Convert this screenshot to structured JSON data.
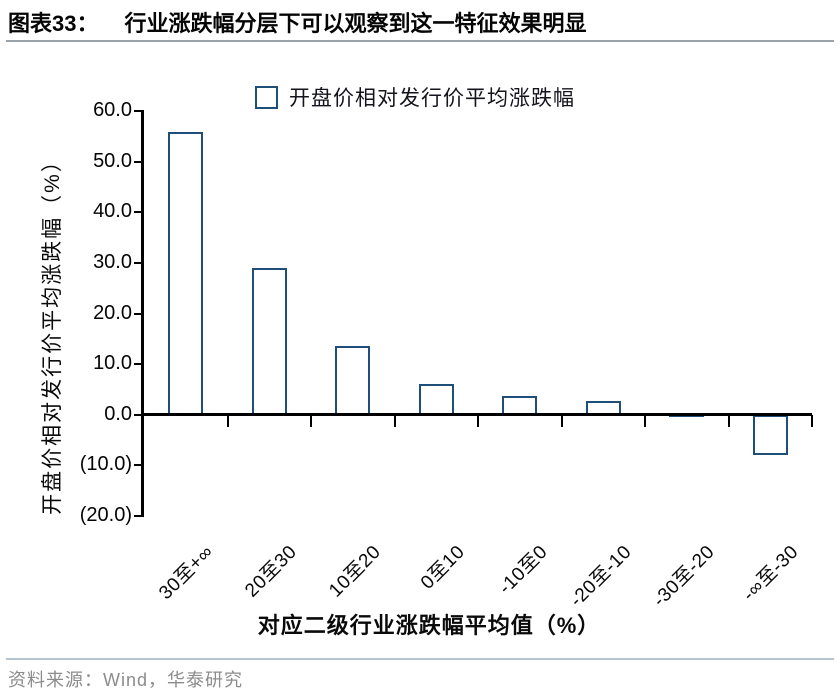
{
  "figure": {
    "label": "图表33：",
    "title": "行业涨跌幅分层下可以观察到这一特征效果明显"
  },
  "chart_data": {
    "type": "bar",
    "legend": [
      "开盘价相对发行价平均涨跌幅"
    ],
    "legend_position": "top",
    "categories": [
      "30至+∞",
      "20至30",
      "10至20",
      "0至10",
      "-10至0",
      "-20至-10",
      "-30至-20",
      "-∞至-30"
    ],
    "values": [
      55.8,
      29.0,
      13.5,
      6.0,
      3.7,
      2.8,
      0.4,
      -7.9
    ],
    "xlabel": "对应二级行业涨跌幅平均值（%）",
    "ylabel": "开盘价相对发行价平均涨跌幅（%）",
    "ylim": [
      -20,
      60
    ],
    "ytick_interval": 10,
    "ytick_labels": [
      "60.0",
      "50.0",
      "40.0",
      "30.0",
      "20.0",
      "10.0",
      "0.0",
      "(10.0)",
      "(20.0)"
    ],
    "grid": false,
    "bar_fill_color": "#ffffff",
    "bar_border_color": "#1F4E79",
    "axis_color": "#000000"
  },
  "source": {
    "text": "资料来源：Wind，华泰研究"
  },
  "colors": {
    "accent_navy": "#1F4E79",
    "title_rule": "#99a3a9",
    "footer_rule": "#b5c3ce",
    "source_text": "#8c8c8c"
  }
}
